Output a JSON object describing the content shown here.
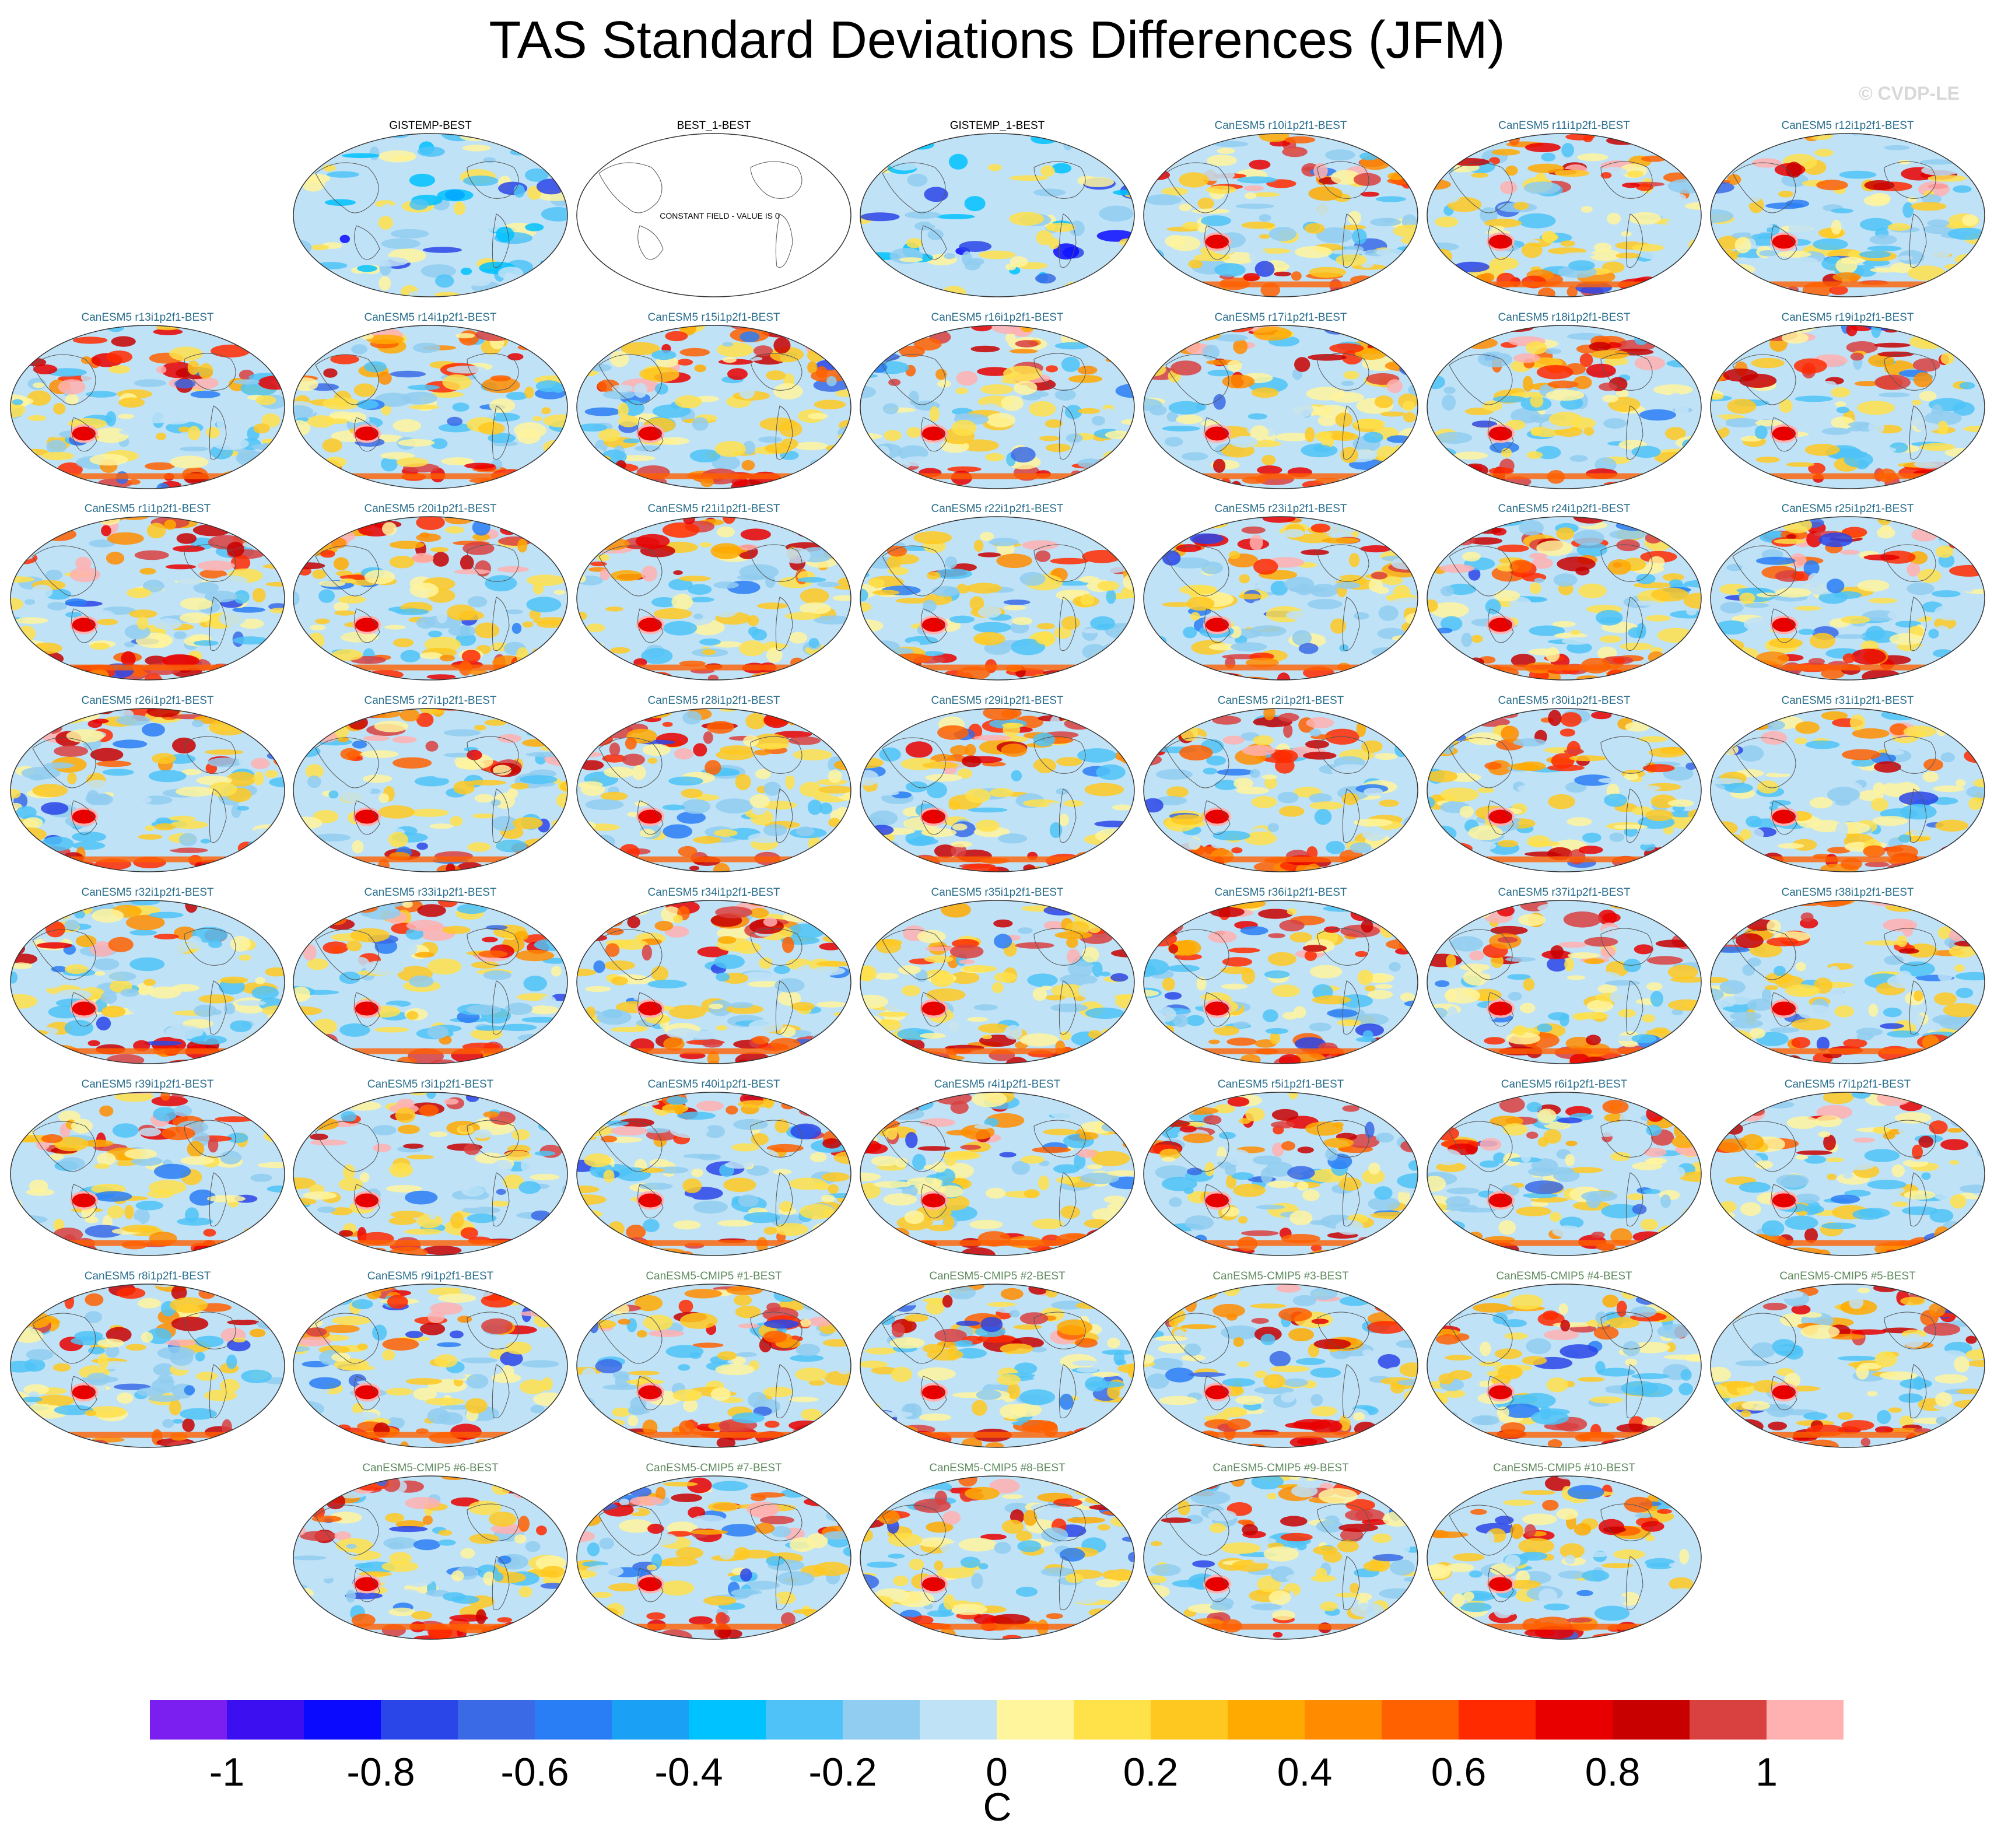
{
  "title": "TAS Standard Deviations Differences (JFM)",
  "credit": "© CVDP-LE",
  "constant_field_label": "CONSTANT FIELD - VALUE IS 0",
  "panels": [
    {
      "label": "GISTEMP-BEST",
      "kind": "obs"
    },
    {
      "label": "BEST_1-BEST",
      "kind": "constant"
    },
    {
      "label": "GISTEMP_1-BEST",
      "kind": "obs"
    },
    {
      "label": "CanESM5 r10i1p2f1-BEST",
      "kind": "model"
    },
    {
      "label": "CanESM5 r11i1p2f1-BEST",
      "kind": "model"
    },
    {
      "label": "CanESM5 r12i1p2f1-BEST",
      "kind": "model"
    },
    {
      "label": "CanESM5 r13i1p2f1-BEST",
      "kind": "model"
    },
    {
      "label": "CanESM5 r14i1p2f1-BEST",
      "kind": "model"
    },
    {
      "label": "CanESM5 r15i1p2f1-BEST",
      "kind": "model"
    },
    {
      "label": "CanESM5 r16i1p2f1-BEST",
      "kind": "model"
    },
    {
      "label": "CanESM5 r17i1p2f1-BEST",
      "kind": "model"
    },
    {
      "label": "CanESM5 r18i1p2f1-BEST",
      "kind": "model"
    },
    {
      "label": "CanESM5 r19i1p2f1-BEST",
      "kind": "model"
    },
    {
      "label": "CanESM5 r1i1p2f1-BEST",
      "kind": "model"
    },
    {
      "label": "CanESM5 r20i1p2f1-BEST",
      "kind": "model"
    },
    {
      "label": "CanESM5 r21i1p2f1-BEST",
      "kind": "model"
    },
    {
      "label": "CanESM5 r22i1p2f1-BEST",
      "kind": "model"
    },
    {
      "label": "CanESM5 r23i1p2f1-BEST",
      "kind": "model"
    },
    {
      "label": "CanESM5 r24i1p2f1-BEST",
      "kind": "model"
    },
    {
      "label": "CanESM5 r25i1p2f1-BEST",
      "kind": "model"
    },
    {
      "label": "CanESM5 r26i1p2f1-BEST",
      "kind": "model"
    },
    {
      "label": "CanESM5 r27i1p2f1-BEST",
      "kind": "model"
    },
    {
      "label": "CanESM5 r28i1p2f1-BEST",
      "kind": "model"
    },
    {
      "label": "CanESM5 r29i1p2f1-BEST",
      "kind": "model"
    },
    {
      "label": "CanESM5 r2i1p2f1-BEST",
      "kind": "model"
    },
    {
      "label": "CanESM5 r30i1p2f1-BEST",
      "kind": "model"
    },
    {
      "label": "CanESM5 r31i1p2f1-BEST",
      "kind": "model"
    },
    {
      "label": "CanESM5 r32i1p2f1-BEST",
      "kind": "model"
    },
    {
      "label": "CanESM5 r33i1p2f1-BEST",
      "kind": "model"
    },
    {
      "label": "CanESM5 r34i1p2f1-BEST",
      "kind": "model"
    },
    {
      "label": "CanESM5 r35i1p2f1-BEST",
      "kind": "model"
    },
    {
      "label": "CanESM5 r36i1p2f1-BEST",
      "kind": "model"
    },
    {
      "label": "CanESM5 r37i1p2f1-BEST",
      "kind": "model"
    },
    {
      "label": "CanESM5 r38i1p2f1-BEST",
      "kind": "model"
    },
    {
      "label": "CanESM5 r39i1p2f1-BEST",
      "kind": "model"
    },
    {
      "label": "CanESM5 r3i1p2f1-BEST",
      "kind": "model"
    },
    {
      "label": "CanESM5 r40i1p2f1-BEST",
      "kind": "model"
    },
    {
      "label": "CanESM5 r4i1p2f1-BEST",
      "kind": "model"
    },
    {
      "label": "CanESM5 r5i1p2f1-BEST",
      "kind": "model"
    },
    {
      "label": "CanESM5 r6i1p2f1-BEST",
      "kind": "model"
    },
    {
      "label": "CanESM5 r7i1p2f1-BEST",
      "kind": "model"
    },
    {
      "label": "CanESM5 r8i1p2f1-BEST",
      "kind": "model"
    },
    {
      "label": "CanESM5 r9i1p2f1-BEST",
      "kind": "model"
    },
    {
      "label": "CanESM5-CMIP5 #1-BEST",
      "kind": "cmip5"
    },
    {
      "label": "CanESM5-CMIP5 #2-BEST",
      "kind": "cmip5"
    },
    {
      "label": "CanESM5-CMIP5 #3-BEST",
      "kind": "cmip5"
    },
    {
      "label": "CanESM5-CMIP5 #4-BEST",
      "kind": "cmip5"
    },
    {
      "label": "CanESM5-CMIP5 #5-BEST",
      "kind": "cmip5"
    },
    {
      "label": "CanESM5-CMIP5 #6-BEST",
      "kind": "cmip5"
    },
    {
      "label": "CanESM5-CMIP5 #7-BEST",
      "kind": "cmip5"
    },
    {
      "label": "CanESM5-CMIP5 #8-BEST",
      "kind": "cmip5"
    },
    {
      "label": "CanESM5-CMIP5 #9-BEST",
      "kind": "cmip5"
    },
    {
      "label": "CanESM5-CMIP5 #10-BEST",
      "kind": "cmip5"
    }
  ],
  "title_colors": {
    "obs": "#000000",
    "model": "#2a6e8c",
    "cmip5": "#5f8a5f",
    "constant": "#000000"
  },
  "colorbar": {
    "unit": "C",
    "colors": [
      "#7b1ef0",
      "#3c0ff0",
      "#0a0aff",
      "#2a45e8",
      "#3a6ae6",
      "#2a7ef5",
      "#1aa0f5",
      "#00c2ff",
      "#4fc3f7",
      "#90cdf0",
      "#bfe2f7",
      "#fff59d",
      "#ffe14a",
      "#ffc820",
      "#ffaa00",
      "#ff8c00",
      "#ff6000",
      "#ff2a00",
      "#e80000",
      "#c80000",
      "#d94040",
      "#ffb0b0"
    ],
    "ticks": [
      "-1",
      "-0.8",
      "-0.6",
      "-0.4",
      "-0.2",
      "0",
      "0.2",
      "0.4",
      "0.6",
      "0.8",
      "1"
    ]
  }
}
